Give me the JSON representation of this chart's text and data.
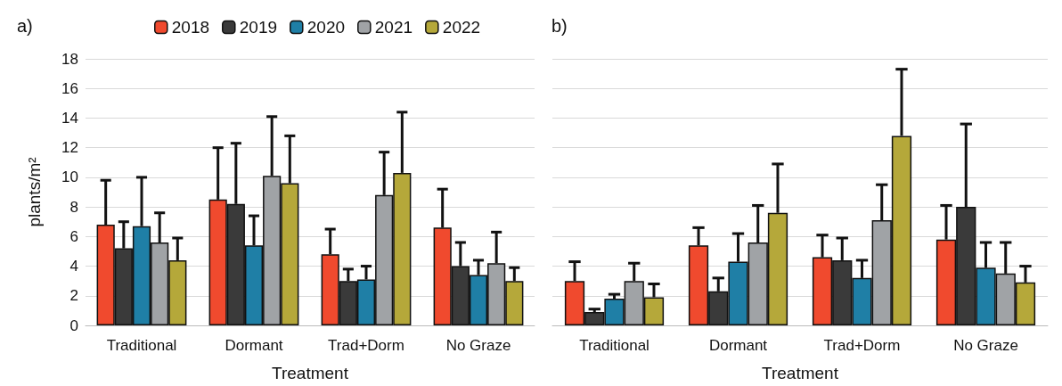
{
  "chart_data": [
    {
      "type": "bar",
      "title": "a)",
      "xlabel": "Treatment",
      "ylabel": "plants/m²",
      "categories": [
        "Traditional",
        "Dormant",
        "Trad+Dorm",
        "No Graze"
      ],
      "ylim": [
        0,
        18
      ],
      "yticks": [
        0,
        2,
        4,
        6,
        8,
        10,
        12,
        14,
        16,
        18
      ],
      "grid": "y",
      "legend": "top",
      "series": [
        {
          "name": "2018",
          "color": "#f04a2e",
          "values": [
            6.8,
            8.5,
            4.8,
            6.6
          ],
          "errors": [
            [
              6.8,
              9.8
            ],
            [
              8.5,
              12.0
            ],
            [
              4.8,
              6.5
            ],
            [
              6.6,
              9.2
            ]
          ]
        },
        {
          "name": "2019",
          "color": "#3a3a3a",
          "values": [
            5.2,
            8.2,
            3.0,
            4.0
          ],
          "errors": [
            [
              5.2,
              7.0
            ],
            [
              8.2,
              12.3
            ],
            [
              3.0,
              3.8
            ],
            [
              4.0,
              5.6
            ]
          ]
        },
        {
          "name": "2020",
          "color": "#1f7fa6",
          "values": [
            6.7,
            5.4,
            3.1,
            3.4
          ],
          "errors": [
            [
              6.7,
              10.0
            ],
            [
              5.4,
              7.4
            ],
            [
              3.1,
              4.0
            ],
            [
              3.4,
              4.4
            ]
          ]
        },
        {
          "name": "2021",
          "color": "#a0a3a6",
          "values": [
            5.6,
            10.1,
            8.8,
            4.2
          ],
          "errors": [
            [
              5.6,
              7.6
            ],
            [
              10.1,
              14.1
            ],
            [
              8.8,
              11.7
            ],
            [
              4.2,
              6.3
            ]
          ]
        },
        {
          "name": "2022",
          "color": "#b5a83a",
          "values": [
            4.4,
            9.6,
            10.3,
            3.0
          ],
          "errors": [
            [
              4.4,
              5.9
            ],
            [
              9.6,
              12.8
            ],
            [
              10.3,
              14.4
            ],
            [
              3.0,
              3.9
            ]
          ]
        }
      ]
    },
    {
      "type": "bar",
      "title": "b)",
      "xlabel": "Treatment",
      "categories": [
        "Traditional",
        "Dormant",
        "Trad+Dorm",
        "No Graze"
      ],
      "ylim": [
        0,
        18
      ],
      "yticks": [
        0,
        2,
        4,
        6,
        8,
        10,
        12,
        14,
        16,
        18
      ],
      "grid": "y",
      "tick_labels": "x",
      "series": [
        {
          "color": "#f04a2e",
          "values": [
            3.0,
            5.4,
            4.6,
            5.8
          ],
          "errors": [
            [
              3.0,
              4.3
            ],
            [
              5.4,
              6.6
            ],
            [
              4.6,
              6.1
            ],
            [
              5.8,
              8.1
            ]
          ]
        },
        {
          "color": "#3a3a3a",
          "values": [
            0.9,
            2.3,
            4.4,
            8.0
          ],
          "errors": [
            [
              0.9,
              1.1
            ],
            [
              2.3,
              3.2
            ],
            [
              4.4,
              5.9
            ],
            [
              8.0,
              13.6
            ]
          ]
        },
        {
          "color": "#1f7fa6",
          "values": [
            1.8,
            4.3,
            3.2,
            3.9
          ],
          "errors": [
            [
              1.8,
              2.1
            ],
            [
              4.3,
              6.2
            ],
            [
              3.2,
              4.4
            ],
            [
              3.9,
              5.6
            ]
          ]
        },
        {
          "color": "#a0a3a6",
          "values": [
            3.0,
            5.6,
            7.1,
            3.5
          ],
          "errors": [
            [
              3.0,
              4.2
            ],
            [
              5.6,
              8.1
            ],
            [
              7.1,
              9.5
            ],
            [
              3.5,
              5.6
            ]
          ]
        },
        {
          "color": "#b5a83a",
          "values": [
            1.9,
            7.6,
            12.8,
            2.9
          ],
          "errors": [
            [
              1.9,
              2.8
            ],
            [
              7.6,
              10.9
            ],
            [
              12.8,
              17.3
            ],
            [
              2.9,
              4.0
            ]
          ]
        }
      ]
    }
  ]
}
